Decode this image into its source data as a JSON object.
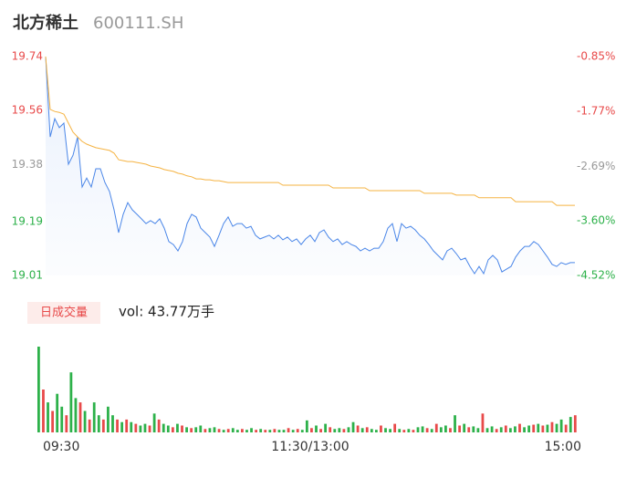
{
  "header": {
    "name": "北方稀土",
    "code": "600111.SH"
  },
  "chart_data": [
    {
      "type": "line",
      "xlim": [
        0,
        116
      ],
      "xticks": [
        {
          "value": 0,
          "label": "09:30"
        },
        {
          "value": 58,
          "label": "11:30/13:00"
        },
        {
          "value": 116,
          "label": "15:00"
        }
      ],
      "ylim": [
        19.01,
        19.74
      ],
      "yticks": [
        19.74,
        19.56,
        19.38,
        19.19,
        19.01
      ],
      "y2lim": [
        -4.52,
        -0.85
      ],
      "y2ticks": [
        {
          "value": -0.85,
          "label": "-0.85%"
        },
        {
          "value": -1.77,
          "label": "-1.77%"
        },
        {
          "value": -2.69,
          "label": "-2.69%"
        },
        {
          "value": -3.6,
          "label": "-3.60%"
        },
        {
          "value": -4.52,
          "label": "-4.52%"
        }
      ],
      "series": [
        {
          "color": "#4a86e8",
          "area": true,
          "values": [
            19.74,
            19.472,
            19.533,
            19.503,
            19.518,
            19.381,
            19.411,
            19.472,
            19.305,
            19.335,
            19.305,
            19.366,
            19.366,
            19.32,
            19.29,
            19.229,
            19.153,
            19.214,
            19.253,
            19.229,
            19.214,
            19.199,
            19.183,
            19.193,
            19.183,
            19.199,
            19.168,
            19.123,
            19.113,
            19.092,
            19.123,
            19.183,
            19.214,
            19.205,
            19.168,
            19.153,
            19.138,
            19.107,
            19.144,
            19.183,
            19.205,
            19.174,
            19.183,
            19.183,
            19.168,
            19.174,
            19.144,
            19.132,
            19.138,
            19.144,
            19.132,
            19.144,
            19.129,
            19.138,
            19.123,
            19.132,
            19.113,
            19.132,
            19.144,
            19.123,
            19.153,
            19.162,
            19.138,
            19.123,
            19.132,
            19.113,
            19.123,
            19.113,
            19.107,
            19.092,
            19.101,
            19.092,
            19.101,
            19.101,
            19.123,
            19.168,
            19.183,
            19.123,
            19.183,
            19.168,
            19.174,
            19.162,
            19.144,
            19.132,
            19.113,
            19.092,
            19.077,
            19.062,
            19.092,
            19.101,
            19.083,
            19.062,
            19.068,
            19.04,
            19.016,
            19.04,
            19.016,
            19.062,
            19.077,
            19.062,
            19.022,
            19.031,
            19.04,
            19.071,
            19.092,
            19.107,
            19.107,
            19.123,
            19.113,
            19.092,
            19.071,
            19.047,
            19.04,
            19.053,
            19.047,
            19.053,
            19.053
          ]
        },
        {
          "color": "#f5b342",
          "area": false,
          "values": [
            19.74,
            19.564,
            19.557,
            19.554,
            19.548,
            19.518,
            19.488,
            19.472,
            19.457,
            19.448,
            19.442,
            19.436,
            19.433,
            19.43,
            19.427,
            19.418,
            19.396,
            19.393,
            19.39,
            19.39,
            19.387,
            19.384,
            19.381,
            19.375,
            19.372,
            19.369,
            19.363,
            19.36,
            19.357,
            19.351,
            19.348,
            19.342,
            19.339,
            19.332,
            19.332,
            19.329,
            19.329,
            19.326,
            19.326,
            19.323,
            19.32,
            19.32,
            19.32,
            19.32,
            19.32,
            19.32,
            19.32,
            19.32,
            19.32,
            19.32,
            19.32,
            19.32,
            19.311,
            19.311,
            19.311,
            19.311,
            19.311,
            19.311,
            19.311,
            19.311,
            19.311,
            19.311,
            19.311,
            19.302,
            19.302,
            19.302,
            19.302,
            19.302,
            19.302,
            19.302,
            19.302,
            19.293,
            19.293,
            19.293,
            19.293,
            19.293,
            19.293,
            19.293,
            19.293,
            19.293,
            19.293,
            19.293,
            19.293,
            19.284,
            19.284,
            19.284,
            19.284,
            19.284,
            19.284,
            19.284,
            19.278,
            19.278,
            19.278,
            19.278,
            19.278,
            19.269,
            19.269,
            19.269,
            19.269,
            19.269,
            19.269,
            19.269,
            19.269,
            19.256,
            19.256,
            19.256,
            19.256,
            19.256,
            19.256,
            19.256,
            19.256,
            19.256,
            19.244,
            19.244,
            19.244,
            19.244,
            19.244
          ]
        }
      ]
    },
    {
      "type": "bar",
      "label": "日成交量",
      "summary": "vol: 43.77万手",
      "ylim": [
        0,
        100
      ],
      "values": [
        100,
        50,
        35,
        25,
        45,
        30,
        20,
        70,
        40,
        35,
        25,
        15,
        35,
        20,
        15,
        30,
        20,
        15,
        12,
        15,
        12,
        10,
        8,
        10,
        8,
        22,
        15,
        10,
        8,
        6,
        10,
        8,
        6,
        5,
        6,
        8,
        4,
        5,
        6,
        4,
        3,
        4,
        5,
        3,
        4,
        3,
        5,
        3,
        4,
        3,
        3,
        4,
        3,
        3,
        5,
        3,
        4,
        3,
        14,
        5,
        8,
        4,
        10,
        6,
        4,
        5,
        4,
        6,
        12,
        8,
        5,
        6,
        4,
        3,
        8,
        5,
        4,
        10,
        4,
        3,
        4,
        3,
        6,
        7,
        5,
        4,
        10,
        6,
        8,
        5,
        20,
        8,
        10,
        6,
        7,
        5,
        22,
        5,
        7,
        4,
        6,
        8,
        5,
        7,
        10,
        6,
        8,
        9,
        10,
        8,
        9,
        12,
        10,
        15,
        9,
        18,
        20
      ],
      "colors": [
        "#2db14a",
        "#e84a4a",
        "#2db14a",
        "#e84a4a",
        "#2db14a",
        "#2db14a",
        "#e84a4a",
        "#2db14a",
        "#2db14a",
        "#e84a4a",
        "#2db14a",
        "#e84a4a",
        "#2db14a",
        "#2db14a",
        "#e84a4a",
        "#2db14a",
        "#2db14a",
        "#e84a4a",
        "#2db14a",
        "#e84a4a",
        "#2db14a",
        "#e84a4a",
        "#2db14a",
        "#2db14a",
        "#e84a4a",
        "#2db14a",
        "#e84a4a",
        "#2db14a",
        "#2db14a",
        "#e84a4a",
        "#2db14a",
        "#e84a4a",
        "#2db14a",
        "#e84a4a",
        "#2db14a",
        "#2db14a",
        "#e84a4a",
        "#2db14a",
        "#2db14a",
        "#e84a4a",
        "#2db14a",
        "#e84a4a",
        "#2db14a",
        "#2db14a",
        "#e84a4a",
        "#2db14a",
        "#2db14a",
        "#e84a4a",
        "#2db14a",
        "#e84a4a",
        "#2db14a",
        "#e84a4a",
        "#2db14a",
        "#2db14a",
        "#e84a4a",
        "#2db14a",
        "#e84a4a",
        "#2db14a",
        "#2db14a",
        "#e84a4a",
        "#2db14a",
        "#e84a4a",
        "#2db14a",
        "#e84a4a",
        "#2db14a",
        "#2db14a",
        "#e84a4a",
        "#2db14a",
        "#2db14a",
        "#e84a4a",
        "#2db14a",
        "#e84a4a",
        "#2db14a",
        "#2db14a",
        "#e84a4a",
        "#2db14a",
        "#2db14a",
        "#e84a4a",
        "#2db14a",
        "#e84a4a",
        "#2db14a",
        "#e84a4a",
        "#2db14a",
        "#2db14a",
        "#e84a4a",
        "#2db14a",
        "#e84a4a",
        "#2db14a",
        "#2db14a",
        "#e84a4a",
        "#2db14a",
        "#e84a4a",
        "#2db14a",
        "#e84a4a",
        "#2db14a",
        "#2db14a",
        "#e84a4a",
        "#2db14a",
        "#2db14a",
        "#e84a4a",
        "#2db14a",
        "#e84a4a",
        "#2db14a",
        "#2db14a",
        "#e84a4a",
        "#2db14a",
        "#2db14a",
        "#e84a4a",
        "#2db14a",
        "#e84a4a",
        "#2db14a",
        "#e84a4a",
        "#2db14a",
        "#2db14a",
        "#e84a4a",
        "#2db14a",
        "#e84a4a"
      ]
    }
  ]
}
